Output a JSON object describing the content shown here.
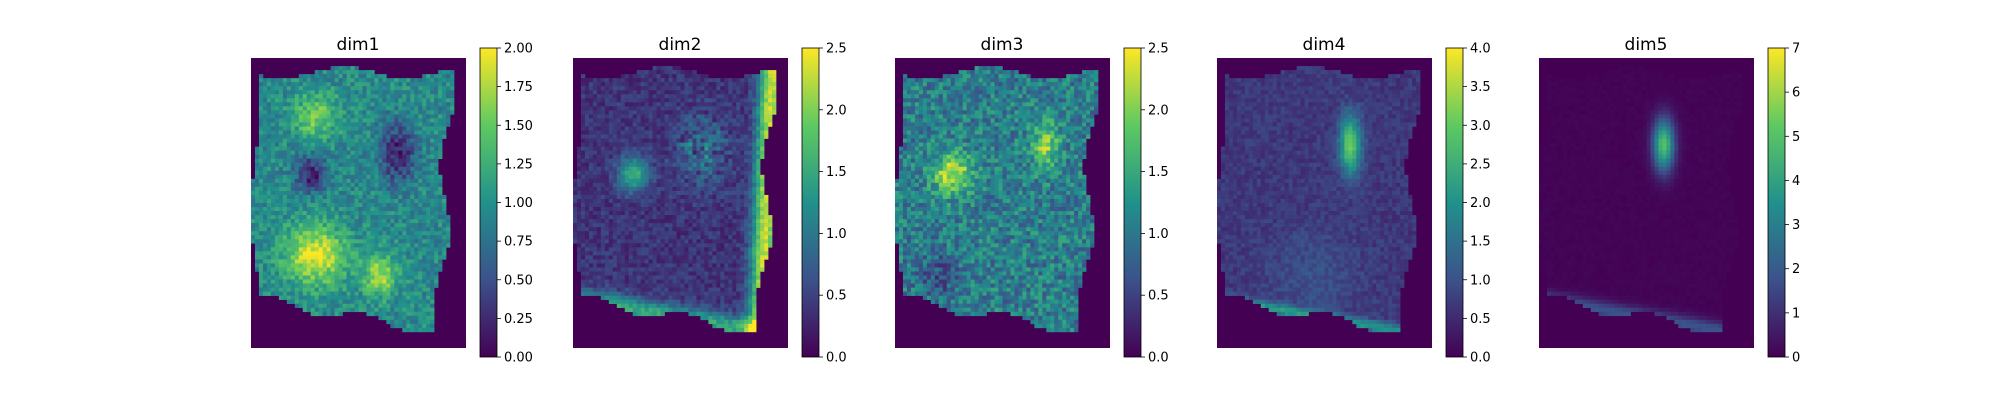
{
  "chart_data": {
    "type": "heatmap",
    "colormap": "viridis",
    "colormap_stops": [
      "#440154",
      "#3b528b",
      "#21918c",
      "#5ec962",
      "#fde725"
    ],
    "background_value_color": "#440154",
    "panels": [
      {
        "title": "dim1",
        "vmin": 0,
        "vmax": 2.0,
        "colorbar_ticks": [
          0,
          0.25,
          0.5,
          0.75,
          1.0,
          1.25,
          1.5,
          1.75,
          2.0
        ],
        "colorbar_tick_labels": [
          "0.00",
          "0.25",
          "0.50",
          "0.75",
          "1.00",
          "1.25",
          "1.50",
          "1.75",
          "2.00"
        ],
        "description_of_pattern": "broad moderate signal across tissue with bright patches lower-left"
      },
      {
        "title": "dim2",
        "vmin": 0,
        "vmax": 2.5,
        "colorbar_ticks": [
          0,
          0.5,
          1.0,
          1.5,
          2.0,
          2.5
        ],
        "colorbar_tick_labels": [
          "0.0",
          "0.5",
          "1.0",
          "1.5",
          "2.0",
          "2.5"
        ],
        "description_of_pattern": "high signal along right edge and bottom border, one blob on left"
      },
      {
        "title": "dim3",
        "vmin": 0,
        "vmax": 2.5,
        "colorbar_ticks": [
          0,
          0.5,
          1.0,
          1.5,
          2.0,
          2.5
        ],
        "colorbar_tick_labels": [
          "0.0",
          "0.5",
          "1.0",
          "1.5",
          "2.0",
          "2.5"
        ],
        "description_of_pattern": "moderate signal across tissue with bright round blob left-center and ring top-right"
      },
      {
        "title": "dim4",
        "vmin": 0,
        "vmax": 4.0,
        "colorbar_ticks": [
          0,
          0.5,
          1.0,
          1.5,
          2.0,
          2.5,
          3.0,
          3.5,
          4.0
        ],
        "colorbar_tick_labels": [
          "0.0",
          "0.5",
          "1.0",
          "1.5",
          "2.0",
          "2.5",
          "3.0",
          "3.5",
          "4.0"
        ],
        "description_of_pattern": "low diffuse signal, bright elongated spot upper-right, bright bottom edge"
      },
      {
        "title": "dim5",
        "vmin": 0,
        "vmax": 7,
        "colorbar_ticks": [
          0,
          1,
          2,
          3,
          4,
          5,
          6,
          7
        ],
        "colorbar_tick_labels": [
          "0",
          "1",
          "2",
          "3",
          "4",
          "5",
          "6",
          "7"
        ],
        "description_of_pattern": "mostly zero, bright spot upper-middle, signal along bottom edge"
      }
    ]
  }
}
